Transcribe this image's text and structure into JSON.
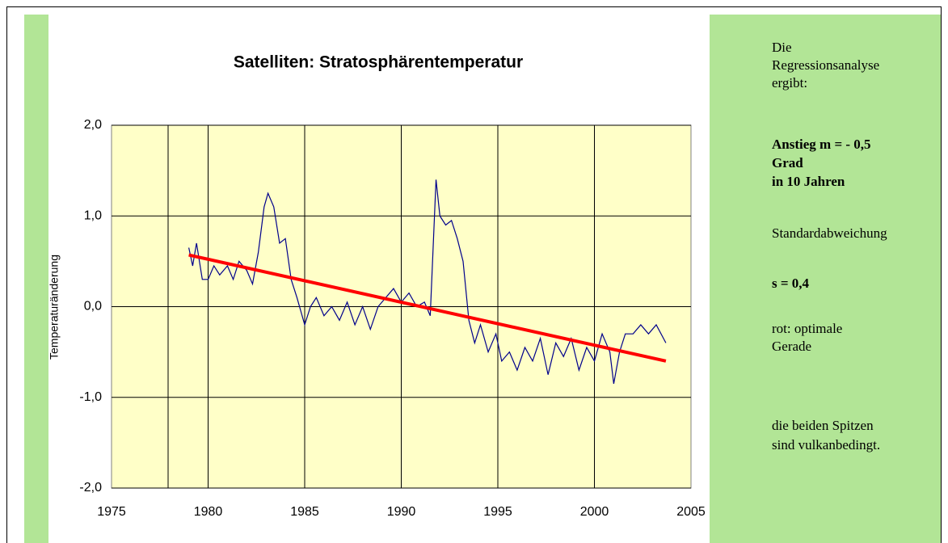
{
  "chart_data": {
    "type": "line",
    "title": "Satelliten:  Stratosphärentemperatur",
    "ylabel": "Temperaturänderung",
    "xlim": [
      1975,
      2005
    ],
    "xticks": [
      1975,
      1980,
      1985,
      1990,
      1995,
      2000,
      2005
    ],
    "ylim": [
      -2,
      2
    ],
    "yticks": [
      {
        "value": -2,
        "label": "-2,0"
      },
      {
        "value": -1,
        "label": "-1,0"
      },
      {
        "value": 0,
        "label": "0,0"
      },
      {
        "value": 1,
        "label": "1,0"
      },
      {
        "value": 2,
        "label": "2,0"
      }
    ],
    "grid": true,
    "series": [
      {
        "color": "#00008b",
        "x": [
          1979.0,
          1979.2,
          1979.4,
          1979.7,
          1980.0,
          1980.3,
          1980.6,
          1981.0,
          1981.3,
          1981.6,
          1982.0,
          1982.3,
          1982.6,
          1982.9,
          1983.1,
          1983.4,
          1983.7,
          1984.0,
          1984.3,
          1984.6,
          1985.0,
          1985.3,
          1985.6,
          1986.0,
          1986.4,
          1986.8,
          1987.2,
          1987.6,
          1988.0,
          1988.4,
          1988.8,
          1989.2,
          1989.6,
          1990.0,
          1990.4,
          1990.8,
          1991.2,
          1991.5,
          1991.8,
          1992.0,
          1992.3,
          1992.6,
          1992.9,
          1993.2,
          1993.5,
          1993.8,
          1994.1,
          1994.5,
          1994.9,
          1995.2,
          1995.6,
          1996.0,
          1996.4,
          1996.8,
          1997.2,
          1997.6,
          1998.0,
          1998.4,
          1998.8,
          1999.2,
          1999.6,
          2000.0,
          2000.4,
          2000.8,
          2001.0,
          2001.3,
          2001.6,
          2002.0,
          2002.4,
          2002.8,
          2003.2,
          2003.7
        ],
        "values": [
          0.65,
          0.45,
          0.7,
          0.3,
          0.3,
          0.45,
          0.35,
          0.45,
          0.3,
          0.5,
          0.4,
          0.25,
          0.6,
          1.1,
          1.25,
          1.1,
          0.7,
          0.75,
          0.3,
          0.1,
          -0.2,
          0.0,
          0.1,
          -0.1,
          0.0,
          -0.15,
          0.05,
          -0.2,
          0.0,
          -0.25,
          0.0,
          0.1,
          0.2,
          0.05,
          0.15,
          0.0,
          0.05,
          -0.1,
          1.4,
          1.0,
          0.9,
          0.95,
          0.75,
          0.5,
          -0.15,
          -0.4,
          -0.2,
          -0.5,
          -0.3,
          -0.6,
          -0.5,
          -0.7,
          -0.45,
          -0.6,
          -0.35,
          -0.75,
          -0.4,
          -0.55,
          -0.35,
          -0.7,
          -0.45,
          -0.6,
          -0.3,
          -0.5,
          -0.85,
          -0.5,
          -0.3,
          -0.3,
          -0.2,
          -0.3,
          -0.2,
          -0.4
        ]
      },
      {
        "color": "#ff0000",
        "x": [
          1979.0,
          2003.7
        ],
        "values": [
          0.57,
          -0.6
        ]
      }
    ]
  },
  "sidebar": {
    "lines": [
      {
        "text": "Die",
        "bold": false,
        "top": 0
      },
      {
        "text": "Regressionsanalyse",
        "bold": false
      },
      {
        "text": "ergibt:",
        "bold": false
      },
      {
        "text": "Anstieg m = - 0,5",
        "bold": true
      },
      {
        "text": "Grad",
        "bold": true
      },
      {
        "text": "in 10 Jahren",
        "bold": true
      },
      {
        "text": "Standardabweichung",
        "bold": false
      },
      {
        "text": "s = 0,4",
        "bold": true
      },
      {
        "text": "rot: optimale",
        "bold": false
      },
      {
        "text": "Gerade",
        "bold": false
      },
      {
        "text": "die beiden Spitzen",
        "bold": false
      },
      {
        "text": "sind vulkanbedingt.",
        "bold": false
      }
    ]
  }
}
